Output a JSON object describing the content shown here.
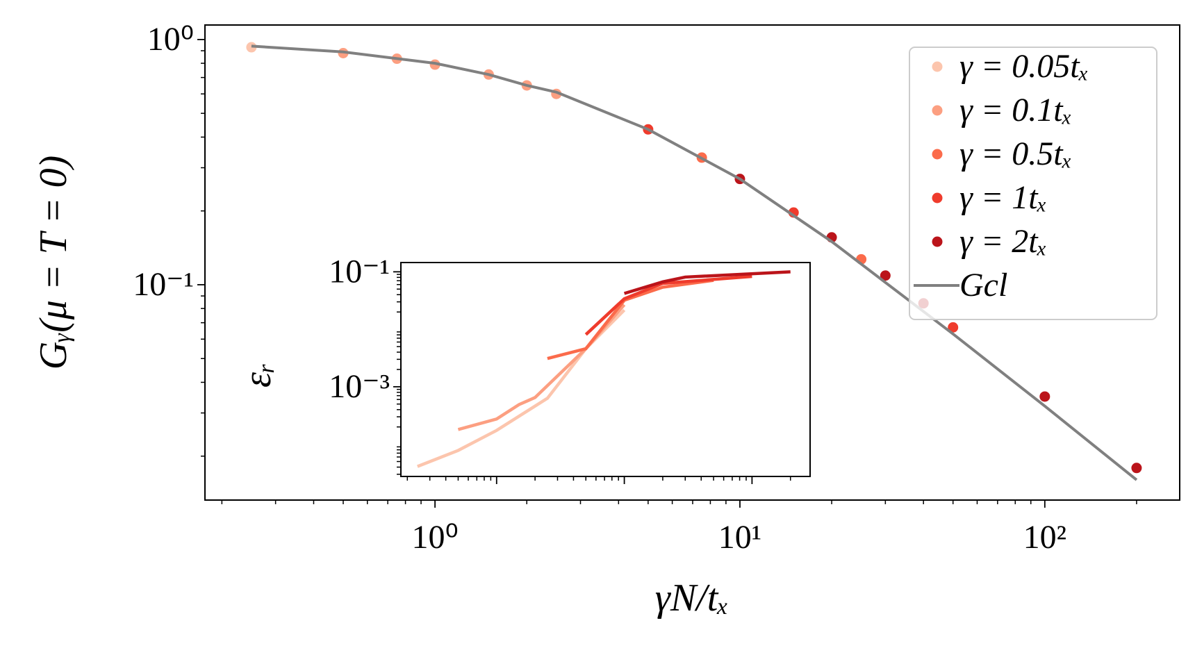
{
  "chart_data": [
    {
      "type": "scatter",
      "xlabel": "γN/tₓ",
      "ylabel": "Gᵧ(μ = T = 0)",
      "xscale": "log",
      "yscale": "log",
      "xlim": [
        0.176,
        277
      ],
      "ylim": [
        0.01324,
        1.146
      ],
      "xticks": [
        {
          "value": 1,
          "label": "10⁰"
        },
        {
          "value": 10,
          "label": "10¹"
        },
        {
          "value": 100,
          "label": "10²"
        }
      ],
      "yticks": [
        {
          "value": 1,
          "label": "10⁰"
        },
        {
          "value": 0.1,
          "label": "10⁻¹"
        }
      ],
      "legend": "upper right",
      "series": [
        {
          "name": "γ = 0.05tₓ",
          "color": "#fcc5ad",
          "kind": "marker",
          "x": [
            0.25
          ],
          "values": [
            0.93
          ]
        },
        {
          "name": "γ = 0.1tₓ",
          "color": "#fc9f81",
          "kind": "marker",
          "x": [
            0.5,
            0.75,
            1.0,
            1.5,
            2.0,
            2.5
          ],
          "values": [
            0.88,
            0.835,
            0.79,
            0.72,
            0.65,
            0.6
          ]
        },
        {
          "name": "γ = 0.5tₓ",
          "color": "#fb6b4b",
          "kind": "marker",
          "x": [
            7.5,
            25
          ],
          "values": [
            0.33,
            0.127
          ]
        },
        {
          "name": "γ = 1tₓ",
          "color": "#ef3b2c",
          "kind": "marker",
          "x": [
            5,
            15,
            50
          ],
          "values": [
            0.43,
            0.197,
            0.067
          ]
        },
        {
          "name": "γ = 2tₓ",
          "color": "#bb141a",
          "kind": "marker",
          "x": [
            10,
            20,
            30,
            40,
            100,
            200
          ],
          "values": [
            0.27,
            0.156,
            0.109,
            0.084,
            0.035,
            0.0179
          ]
        },
        {
          "name": "Gcl",
          "color": "#808080",
          "kind": "line",
          "x": [
            0.25,
            0.5,
            1,
            1.5,
            2,
            2.5,
            5,
            10,
            20,
            50,
            100,
            200
          ],
          "values": [
            0.94,
            0.89,
            0.8,
            0.72,
            0.65,
            0.61,
            0.43,
            0.27,
            0.15,
            0.063,
            0.032,
            0.016
          ]
        }
      ]
    },
    {
      "type": "line",
      "ylabel": "εᵣ",
      "xscale": "log",
      "yscale": "log",
      "xlim": [
        0.178,
        285
      ],
      "ylim": [
        2.75e-05,
        0.145
      ],
      "xticks": [
        1,
        10,
        100
      ],
      "yticks": [
        {
          "value": 0.1,
          "label": "10⁻¹"
        },
        {
          "value": 0.001,
          "label": "10⁻³"
        }
      ],
      "series": [
        {
          "color": "#fcc5ad",
          "x": [
            0.24,
            0.5,
            1,
            2.5,
            5,
            10
          ],
          "values": [
            4.1e-05,
            7.8e-05,
            0.000174,
            0.00063,
            0.0046,
            0.0216
          ]
        },
        {
          "color": "#fc9f81",
          "x": [
            0.5,
            1,
            1.5,
            2,
            5,
            10
          ],
          "values": [
            0.00018,
            0.000275,
            0.00049,
            0.00065,
            0.0046,
            0.0267
          ]
        },
        {
          "color": "#fb6b4b",
          "x": [
            2.5,
            5,
            10,
            20,
            50
          ],
          "values": [
            0.0031,
            0.0046,
            0.032,
            0.054,
            0.071
          ]
        },
        {
          "color": "#ef3b2c",
          "x": [
            5,
            10,
            20,
            100
          ],
          "values": [
            0.0081,
            0.034,
            0.063,
            0.083
          ]
        },
        {
          "color": "#bb141a",
          "x": [
            10,
            20,
            30,
            200
          ],
          "values": [
            0.042,
            0.067,
            0.081,
            0.1
          ]
        }
      ]
    }
  ]
}
